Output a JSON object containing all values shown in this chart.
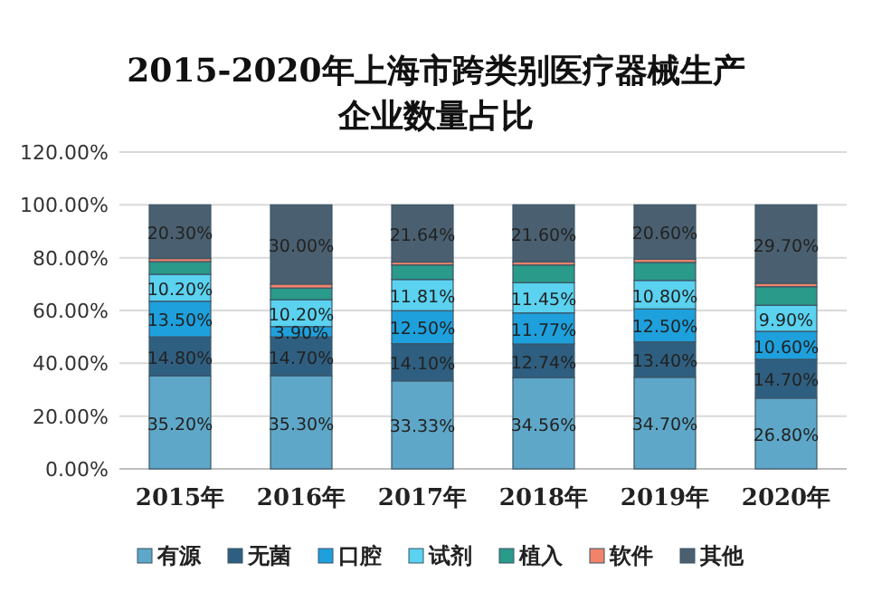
{
  "chart_data": {
    "type": "bar",
    "stacked": true,
    "title": "2015-2020年上海市跨类别医疗器械生产企业数量占比",
    "categories": [
      "2015年",
      "2016年",
      "2017年",
      "2018年",
      "2019年",
      "2020年"
    ],
    "series": [
      {
        "name": "有源",
        "color": "#5ea7c8",
        "values": [
          35.2,
          35.3,
          33.33,
          34.56,
          34.7,
          26.8
        ],
        "value_labels": [
          "35.20%",
          "35.30%",
          "33.33%",
          "34.56%",
          "34.70%",
          "26.80%"
        ]
      },
      {
        "name": "无菌",
        "color": "#2f5f80",
        "values": [
          14.8,
          14.7,
          14.1,
          12.74,
          13.4,
          14.7
        ],
        "value_labels": [
          "14.80%",
          "14.70%",
          "14.10%",
          "12.74%",
          "13.40%",
          "14.70%"
        ]
      },
      {
        "name": "口腔",
        "color": "#1ea0dc",
        "values": [
          13.5,
          3.9,
          12.5,
          11.77,
          12.5,
          10.6
        ],
        "value_labels": [
          "13.50%",
          "3.90%",
          "12.50%",
          "11.77%",
          "12.50%",
          "10.60%"
        ]
      },
      {
        "name": "试剂",
        "color": "#5ad2f0",
        "values": [
          10.2,
          10.2,
          11.81,
          11.45,
          10.8,
          9.9
        ],
        "value_labels": [
          "10.20%",
          "10.20%",
          "11.81%",
          "11.45%",
          "10.80%",
          "9.90%"
        ]
      },
      {
        "name": "植入",
        "color": "#2a9a8a",
        "values": [
          4.8,
          4.4,
          5.5,
          6.7,
          6.8,
          7.0
        ]
      },
      {
        "name": "软件",
        "color": "#f0836a",
        "values": [
          1.2,
          1.5,
          1.1,
          1.2,
          1.2,
          1.3
        ]
      },
      {
        "name": "其他",
        "color": "#4a6070",
        "values": [
          20.3,
          30.0,
          21.64,
          21.6,
          20.6,
          29.7
        ],
        "value_labels": [
          "20.30%",
          "30.00%",
          "21.64%",
          "21.60%",
          "20.60%",
          "29.70%"
        ]
      }
    ],
    "ylim": [
      0,
      120
    ],
    "yticks": [
      {
        "value": 0,
        "label": "0.00%"
      },
      {
        "value": 20,
        "label": "20.00%"
      },
      {
        "value": 40,
        "label": "40.00%"
      },
      {
        "value": 60,
        "label": "60.00%"
      },
      {
        "value": 80,
        "label": "80.00%"
      },
      {
        "value": 100,
        "label": "100.00%"
      },
      {
        "value": 120,
        "label": "120.00%"
      }
    ],
    "grid": "y",
    "legend": "bottom"
  }
}
